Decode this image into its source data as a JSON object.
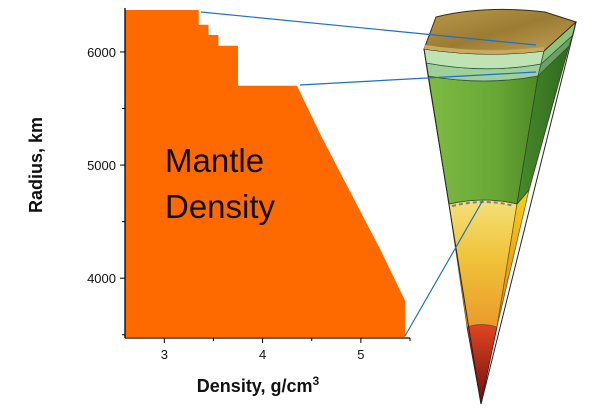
{
  "chart_data": {
    "type": "area",
    "title": "",
    "xlabel": "Density, g/cm",
    "xlabel_superscript": "3",
    "ylabel": "Radius, km",
    "xlim": [
      2.6,
      5.5
    ],
    "ylim": [
      3480,
      6371
    ],
    "xticks": [
      3,
      4,
      5
    ],
    "yticks": [
      4000,
      5000,
      6000
    ],
    "annotation": [
      "Mantle",
      "Density"
    ],
    "fill_color": "#ff6a00",
    "grid": false,
    "legend": "none",
    "series": [
      {
        "x": [
          2.6,
          3.35,
          3.35,
          3.45,
          3.45,
          3.55,
          3.55,
          3.75,
          3.75,
          4.35,
          4.6,
          4.9,
          5.2,
          5.45,
          5.45,
          2.6
        ],
        "y": [
          6371,
          6371,
          6240,
          6240,
          6150,
          6150,
          6055,
          6055,
          5701,
          5701,
          5250,
          4750,
          4250,
          3800,
          3480,
          3480
        ]
      }
    ]
  },
  "inset": {
    "name": "earth-wedge-illustration",
    "colors": {
      "crust": "#a8873c",
      "upper_mantle": "#b6dfa6",
      "transition_zone": "#a5d3a0",
      "lower_mantle": "#6fae3c",
      "outer_core": "#f1c43a",
      "inner_core": "#c7271a",
      "leader_lines": "#1f6fc4"
    }
  }
}
